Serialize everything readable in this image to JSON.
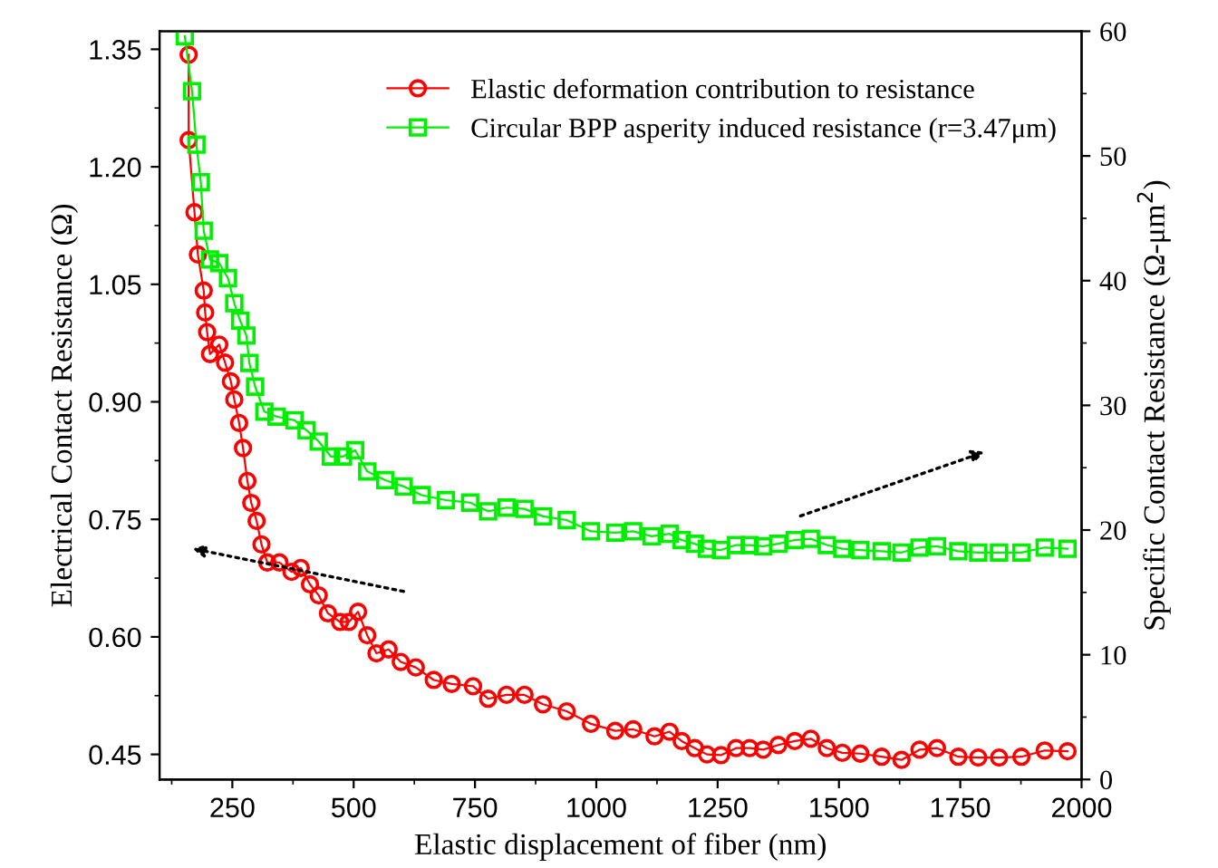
{
  "chart_data": {
    "type": "line",
    "xlabel": "Elastic displacement of fiber (nm)",
    "ylabel": "Electrical Contact Resistance (Ω)",
    "y2label": "Specific Contact Resistance (Ω-μm$^{2}$)",
    "xlim": [
      100,
      2000
    ],
    "xticks": [
      250,
      500,
      750,
      1000,
      1250,
      1500,
      1750,
      2000
    ],
    "ylim": [
      0.418,
      1.373
    ],
    "yticks": [
      {
        "value": 0.45,
        "label": "0.45"
      },
      {
        "value": 0.6,
        "label": "0.60"
      },
      {
        "value": 0.75,
        "label": "0.75"
      },
      {
        "value": 0.9,
        "label": "0.90"
      },
      {
        "value": 1.05,
        "label": "1.05"
      },
      {
        "value": 1.2,
        "label": "1.20"
      },
      {
        "value": 1.35,
        "label": "1.35"
      }
    ],
    "y2lim": [
      0,
      60
    ],
    "y2ticks": [
      0,
      10,
      20,
      30,
      40,
      50,
      60
    ],
    "grid": false,
    "legend": "top right",
    "series": [
      {
        "name": "Elastic deformation contribution to resistance",
        "color": "#ff0000",
        "marker": "circle",
        "x": [
          160,
          160,
          172,
          179,
          191,
          194,
          198,
          204,
          223,
          235,
          247,
          254,
          264,
          272,
          281,
          289,
          300,
          310,
          322,
          347,
          372,
          391,
          410,
          428,
          447,
          472,
          490,
          509,
          528,
          547,
          572,
          597,
          628,
          665,
          702,
          746,
          777,
          815,
          852,
          890,
          939,
          989,
          1039,
          1076,
          1120,
          1151,
          1176,
          1203,
          1228,
          1257,
          1288,
          1316,
          1344,
          1375,
          1409,
          1442,
          1475,
          1507,
          1544,
          1588,
          1629,
          1666,
          1702,
          1746,
          1787,
          1830,
          1876,
          1924,
          1971
        ],
        "values": [
          1.343,
          1.234,
          1.142,
          1.088,
          1.042,
          1.014,
          0.989,
          0.961,
          0.973,
          0.95,
          0.926,
          0.903,
          0.873,
          0.841,
          0.799,
          0.771,
          0.748,
          0.718,
          0.695,
          0.695,
          0.683,
          0.688,
          0.667,
          0.653,
          0.63,
          0.619,
          0.619,
          0.632,
          0.602,
          0.579,
          0.584,
          0.568,
          0.561,
          0.545,
          0.54,
          0.537,
          0.521,
          0.526,
          0.526,
          0.514,
          0.505,
          0.489,
          0.48,
          0.482,
          0.473,
          0.479,
          0.467,
          0.458,
          0.45,
          0.449,
          0.458,
          0.458,
          0.456,
          0.462,
          0.467,
          0.47,
          0.458,
          0.452,
          0.451,
          0.447,
          0.443,
          0.456,
          0.458,
          0.447,
          0.446,
          0.446,
          0.447,
          0.455,
          0.454
        ]
      },
      {
        "name": "Circular BPP asperity induced resistance (r=3.47μm)",
        "color": "#00ee00",
        "marker": "square",
        "axis": "y2",
        "x": [
          152,
          167,
          176,
          185,
          191,
          204,
          223,
          241,
          254,
          266,
          279,
          285,
          297,
          316,
          341,
          378,
          403,
          428,
          453,
          478,
          503,
          528,
          565,
          603,
          640,
          690,
          740,
          777,
          815,
          852,
          890,
          939,
          989,
          1039,
          1076,
          1114,
          1151,
          1176,
          1203,
          1228,
          1257,
          1288,
          1316,
          1344,
          1375,
          1409,
          1442,
          1475,
          1507,
          1544,
          1588,
          1629,
          1666,
          1702,
          1746,
          1787,
          1830,
          1876,
          1924,
          1971
        ],
        "values": [
          59.6,
          55.2,
          50.9,
          47.9,
          44,
          41.7,
          41.4,
          40.2,
          38.2,
          36.8,
          35.6,
          33.4,
          31.5,
          29.5,
          29.1,
          28.8,
          28,
          27.1,
          25.9,
          25.9,
          26.4,
          24.7,
          24,
          23.5,
          22.8,
          22.4,
          22.2,
          21.5,
          21.8,
          21.7,
          21.1,
          20.8,
          19.9,
          19.8,
          19.9,
          19.5,
          19.7,
          19.2,
          18.9,
          18.5,
          18.4,
          18.8,
          18.8,
          18.7,
          18.9,
          19.2,
          19.3,
          18.8,
          18.5,
          18.4,
          18.3,
          18.2,
          18.6,
          18.7,
          18.3,
          18.2,
          18.2,
          18.2,
          18.6,
          18.5
        ]
      }
    ]
  }
}
